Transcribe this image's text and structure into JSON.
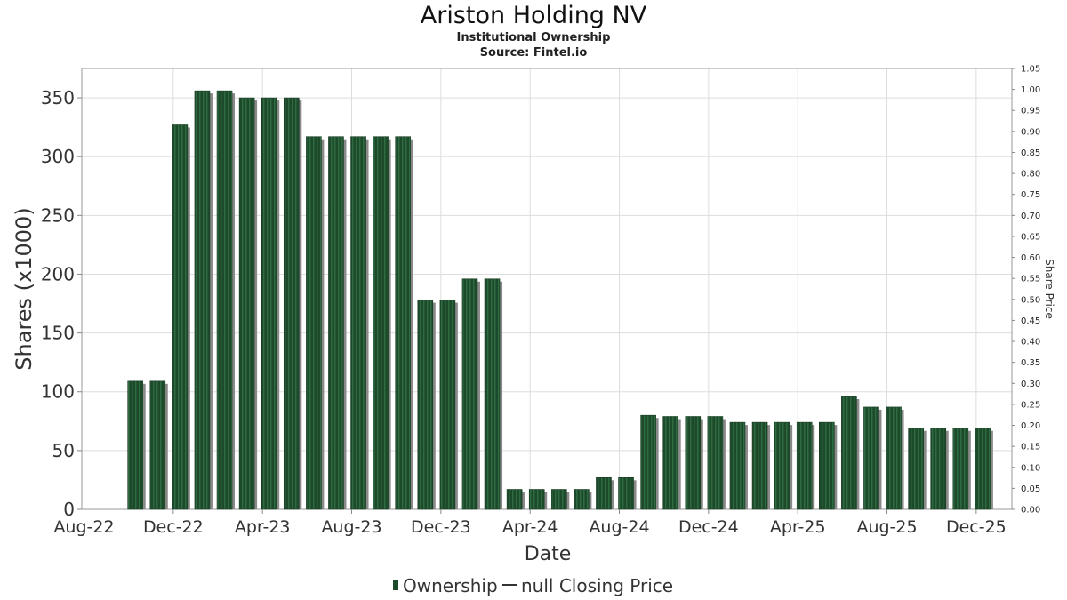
{
  "chart_data": {
    "type": "bar",
    "title": "Ariston Holding NV",
    "subtitle": "Institutional Ownership",
    "source": "Source: Fintel.io",
    "xlabel": "Date",
    "ylabel": "Shares (x1000)",
    "y2label": "Share Price",
    "ylim": [
      0,
      375
    ],
    "y2lim": [
      0,
      1.05
    ],
    "yticks": [
      "0",
      "50",
      "100",
      "150",
      "200",
      "250",
      "300",
      "350"
    ],
    "y2ticks": [
      "0.00",
      "0.05",
      "0.10",
      "0.15",
      "0.20",
      "0.25",
      "0.30",
      "0.35",
      "0.40",
      "0.45",
      "0.50",
      "0.55",
      "0.60",
      "0.65",
      "0.70",
      "0.75",
      "0.80",
      "0.85",
      "0.90",
      "0.95",
      "1.00",
      "1.05"
    ],
    "xticks": [
      "Aug-22",
      "Dec-22",
      "Apr-23",
      "Aug-23",
      "Dec-23",
      "Apr-24",
      "Aug-24",
      "Dec-24",
      "Apr-25",
      "Aug-25",
      "Dec-25"
    ],
    "x_months_range": [
      -0.1,
      41.6
    ],
    "x_tick_months": [
      0,
      4,
      8,
      12,
      16,
      20,
      24,
      28,
      32,
      36,
      40
    ],
    "bar_months": [
      2.3,
      3.3,
      4.3,
      5.3,
      6.3,
      7.3,
      8.3,
      9.3,
      10.3,
      11.3,
      12.3,
      13.3,
      14.3,
      15.3,
      16.3,
      17.3,
      18.3,
      19.3,
      20.3,
      21.3,
      22.3,
      23.3,
      24.3,
      25.3,
      26.3,
      27.3,
      28.3,
      29.3,
      30.3,
      31.3,
      32.3,
      33.3,
      34.3,
      35.3,
      36.3,
      37.3,
      38.3,
      39.3,
      40.3
    ],
    "series": [
      {
        "name": "Ownership",
        "values": [
          109,
          109,
          327,
          356,
          356,
          350,
          350,
          350,
          317,
          317,
          317,
          317,
          317,
          178,
          178,
          196,
          196,
          17,
          17,
          17,
          17,
          27,
          27,
          80,
          79,
          79,
          79,
          74,
          74,
          74,
          74,
          74,
          96,
          87,
          87,
          69,
          69,
          69,
          69
        ]
      },
      {
        "name": "null Closing Price",
        "values": []
      }
    ],
    "legend": [
      {
        "label": "Ownership",
        "marker": "bar"
      },
      {
        "label": "null Closing Price",
        "marker": "line"
      }
    ],
    "legend_position": "bottom-center",
    "colors": {
      "bar": "#1e4a2c",
      "bar_stripe": "#2f6b40",
      "bar_shadow": "#8a8a8a",
      "grid": "#dddddd",
      "axis": "#888888"
    }
  }
}
